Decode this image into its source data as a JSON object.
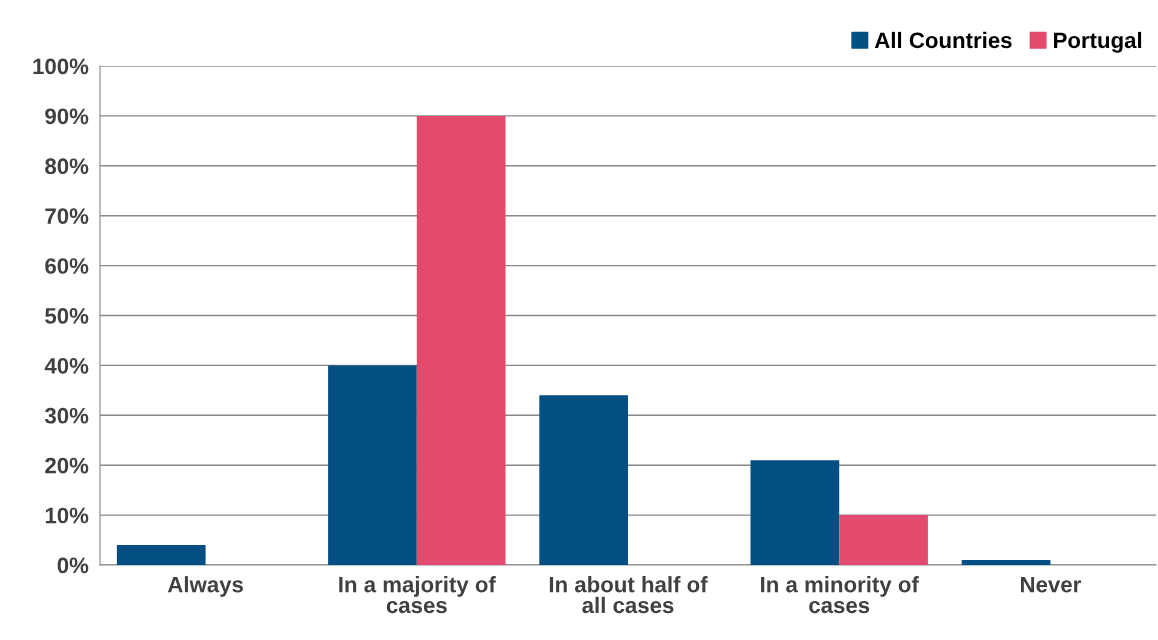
{
  "chart_data": {
    "type": "bar",
    "categories": [
      "Always",
      "In a majority of cases",
      "In about half of all cases",
      "In a minority of cases",
      "Never"
    ],
    "series": [
      {
        "name": "All Countries",
        "color": "#034f84",
        "values": [
          4,
          40,
          34,
          21,
          1
        ]
      },
      {
        "name": "Portugal",
        "color": "#e24a6e",
        "values": [
          0,
          90,
          0,
          10,
          0
        ]
      }
    ],
    "ylim": [
      0,
      100
    ],
    "yticks": [
      {
        "value": 0,
        "label": "0%"
      },
      {
        "value": 10,
        "label": "10%"
      },
      {
        "value": 20,
        "label": "20%"
      },
      {
        "value": 30,
        "label": "30%"
      },
      {
        "value": 40,
        "label": "40%"
      },
      {
        "value": 50,
        "label": "50%"
      },
      {
        "value": 60,
        "label": "60%"
      },
      {
        "value": 70,
        "label": "70%"
      },
      {
        "value": 80,
        "label": "80%"
      },
      {
        "value": 90,
        "label": "90%"
      },
      {
        "value": 100,
        "label": "100%"
      }
    ],
    "grid": "y",
    "legend": "top right"
  }
}
